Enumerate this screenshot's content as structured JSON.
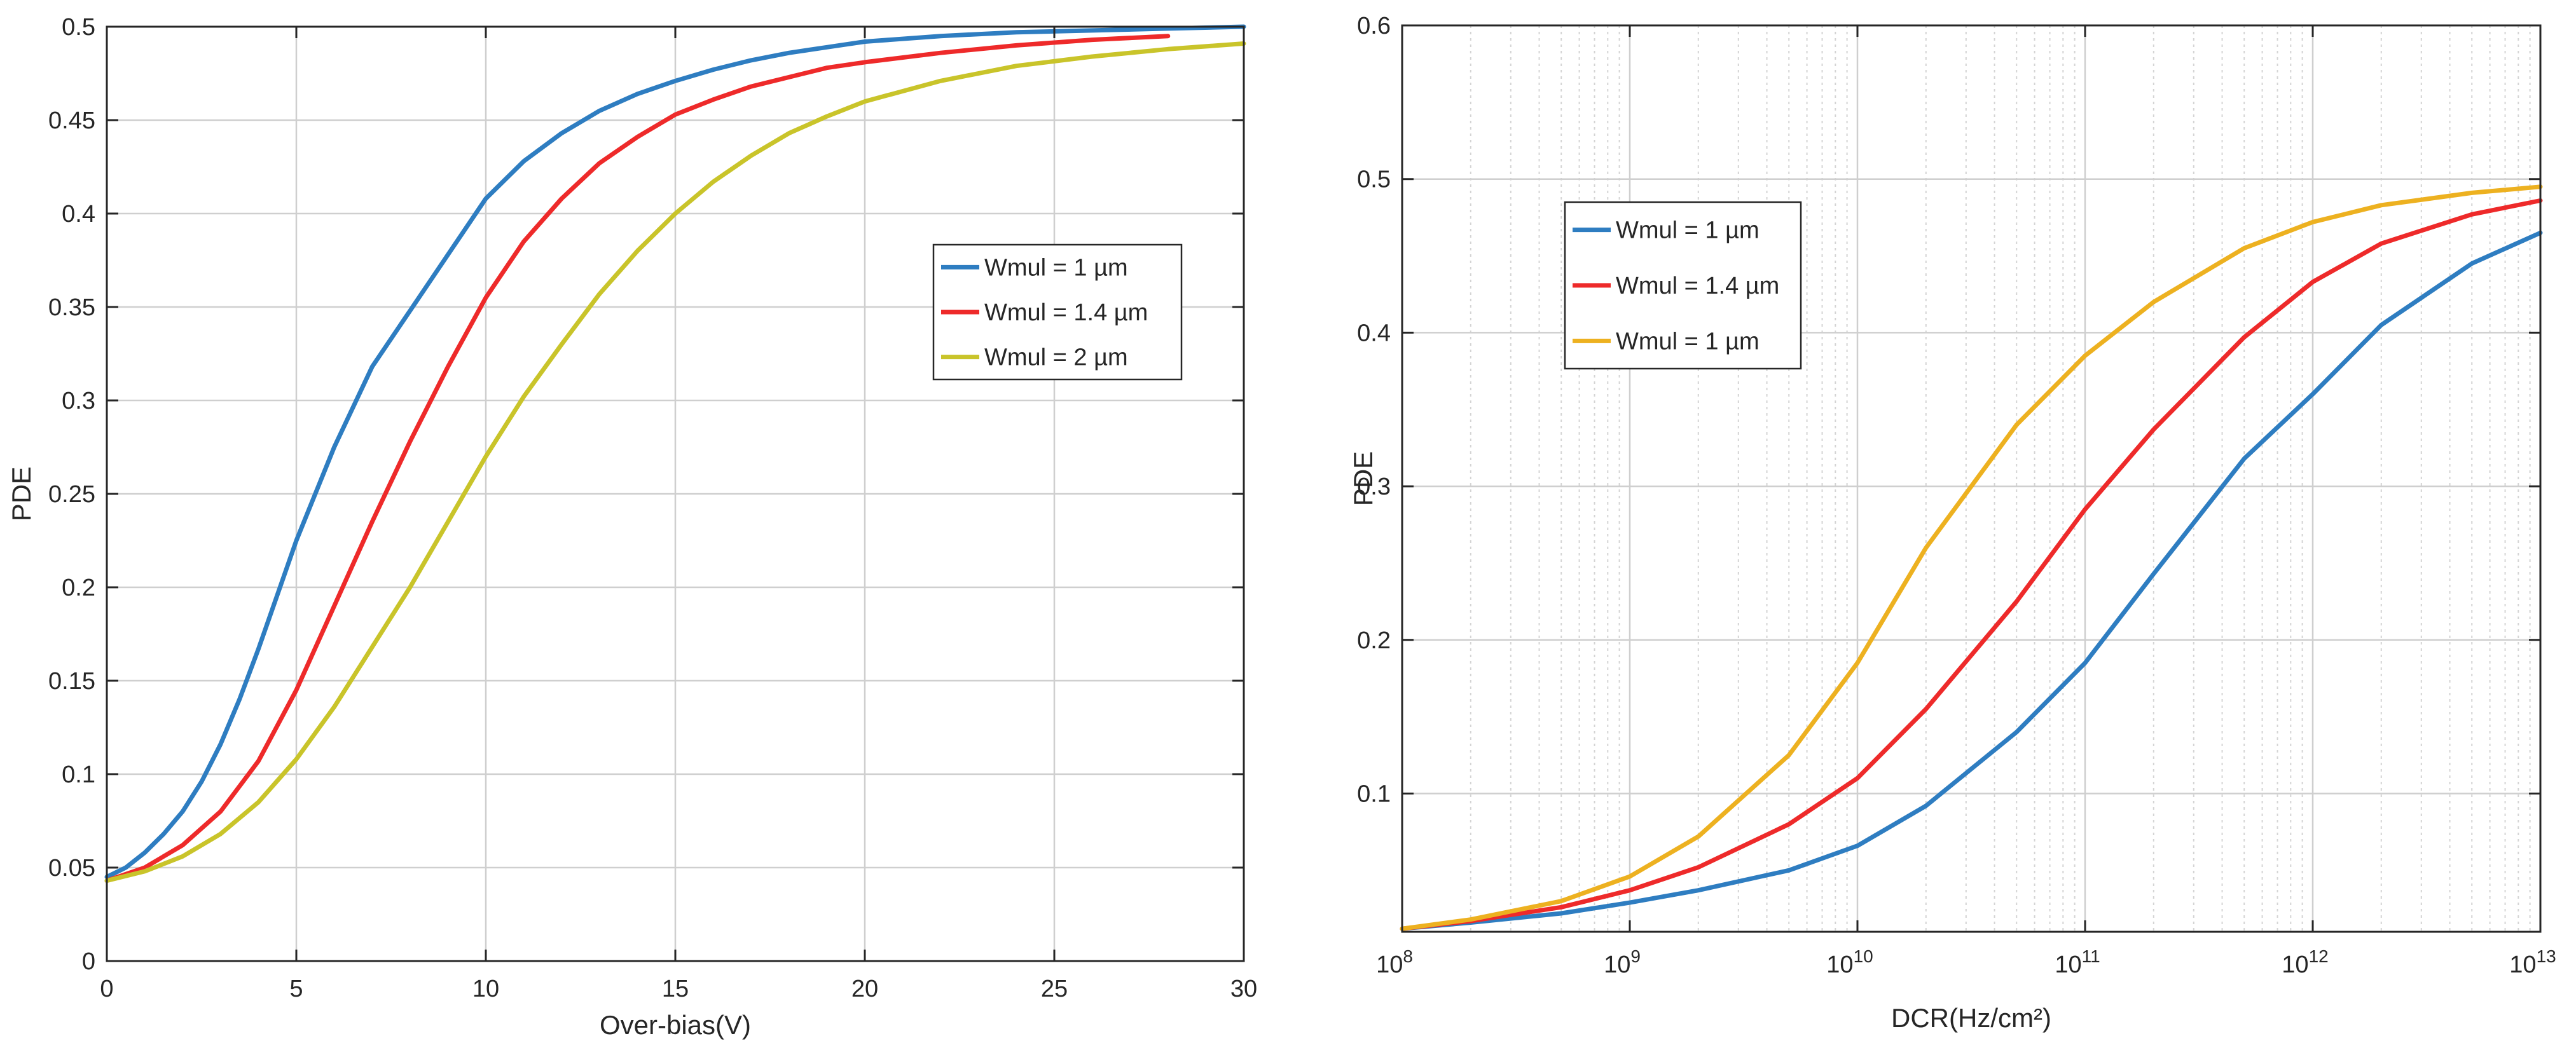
{
  "chart_data": [
    {
      "type": "line",
      "title": "",
      "xlabel": "Over-bias(V)",
      "ylabel": "PDE",
      "xlim": [
        0,
        30
      ],
      "ylim": [
        0,
        0.5
      ],
      "xticks": [
        0,
        5,
        10,
        15,
        20,
        25,
        30
      ],
      "xtick_labels": [
        "0",
        "5",
        "10",
        "15",
        "20",
        "25",
        "30"
      ],
      "yticks": [
        0,
        0.05,
        0.1,
        0.15,
        0.2,
        0.25,
        0.3,
        0.35,
        0.4,
        0.45,
        0.5
      ],
      "ytick_labels": [
        "0",
        "0.05",
        "0.1",
        "0.15",
        "0.2",
        "0.25",
        "0.3",
        "0.35",
        "0.4",
        "0.45",
        "0.5"
      ],
      "grid": true,
      "legend_position": "right-middle",
      "series": [
        {
          "name": "Wmul = 1 µm",
          "color": "#2E7DC1",
          "x": [
            0,
            0.5,
            1,
            1.5,
            2,
            2.5,
            3,
            3.5,
            4,
            4.5,
            5,
            6,
            7,
            8,
            9,
            10,
            11,
            12,
            13,
            14,
            15,
            16,
            17,
            18,
            19,
            20,
            22,
            24,
            26,
            28,
            30
          ],
          "y": [
            0.045,
            0.05,
            0.058,
            0.068,
            0.08,
            0.096,
            0.116,
            0.14,
            0.167,
            0.196,
            0.225,
            0.275,
            0.318,
            0.348,
            0.378,
            0.408,
            0.428,
            0.443,
            0.455,
            0.464,
            0.471,
            0.477,
            0.482,
            0.486,
            0.489,
            0.492,
            0.495,
            0.497,
            0.498,
            0.499,
            0.5
          ]
        },
        {
          "name": "Wmul = 1.4 µm",
          "color": "#EE2A2A",
          "x": [
            0,
            1,
            2,
            3,
            4,
            5,
            6,
            7,
            8,
            9,
            10,
            11,
            12,
            13,
            14,
            15,
            16,
            17,
            18,
            19,
            20,
            22,
            24,
            26,
            28
          ],
          "y": [
            0.043,
            0.05,
            0.062,
            0.08,
            0.107,
            0.145,
            0.19,
            0.235,
            0.278,
            0.318,
            0.355,
            0.385,
            0.408,
            0.427,
            0.441,
            0.453,
            0.461,
            0.468,
            0.473,
            0.478,
            0.481,
            0.486,
            0.49,
            0.493,
            0.495
          ]
        },
        {
          "name": "Wmul = 2 µm",
          "color": "#C9C42A",
          "x": [
            0,
            1,
            2,
            3,
            4,
            5,
            6,
            7,
            8,
            9,
            10,
            11,
            12,
            13,
            14,
            15,
            16,
            17,
            18,
            19,
            20,
            22,
            24,
            26,
            28,
            30
          ],
          "y": [
            0.043,
            0.048,
            0.056,
            0.068,
            0.085,
            0.108,
            0.136,
            0.168,
            0.2,
            0.235,
            0.27,
            0.302,
            0.33,
            0.357,
            0.38,
            0.4,
            0.417,
            0.431,
            0.443,
            0.452,
            0.46,
            0.471,
            0.479,
            0.484,
            0.488,
            0.491
          ]
        }
      ]
    },
    {
      "type": "line",
      "title": "",
      "xlabel": "DCR(Hz/cm²)",
      "ylabel": "PDE",
      "xscale": "log",
      "xlim": [
        100000000,
        10000000000000
      ],
      "ylim": [
        0.01,
        0.6
      ],
      "xticks": [
        100000000,
        1000000000,
        10000000000,
        100000000000,
        1000000000000,
        10000000000000
      ],
      "xtick_bases": [
        "10",
        "10",
        "10",
        "10",
        "10",
        "10"
      ],
      "xtick_exponents": [
        "8",
        "9",
        "10",
        "11",
        "12",
        "13"
      ],
      "yticks": [
        0.1,
        0.2,
        0.3,
        0.4,
        0.5,
        0.6
      ],
      "ytick_labels": [
        "0.1",
        "0.2",
        "0.3",
        "0.4",
        "0.5",
        "0.6"
      ],
      "grid": true,
      "minor_grid": true,
      "legend_position": "left-upper",
      "series": [
        {
          "name": "Wmul = 1 µm",
          "color": "#2E7DC1",
          "x": [
            100000000,
            200000000,
            500000000,
            1000000000,
            2000000000,
            5000000000,
            10000000000,
            20000000000,
            50000000000,
            100000000000,
            200000000000,
            500000000000,
            1000000000000,
            2000000000000,
            5000000000000,
            10000000000000
          ],
          "y": [
            0.012,
            0.016,
            0.022,
            0.029,
            0.037,
            0.05,
            0.066,
            0.092,
            0.14,
            0.185,
            0.243,
            0.318,
            0.36,
            0.405,
            0.445,
            0.465
          ]
        },
        {
          "name": "Wmul = 1.4 µm",
          "color": "#EE2A2A",
          "x": [
            100000000,
            200000000,
            500000000,
            1000000000,
            2000000000,
            5000000000,
            10000000000,
            20000000000,
            50000000000,
            100000000000,
            200000000000,
            500000000000,
            1000000000000,
            2000000000000,
            5000000000000,
            10000000000000
          ],
          "y": [
            0.012,
            0.017,
            0.026,
            0.037,
            0.052,
            0.08,
            0.11,
            0.155,
            0.225,
            0.285,
            0.337,
            0.397,
            0.433,
            0.458,
            0.477,
            0.486
          ]
        },
        {
          "name": "Wmul = 1 µm",
          "color": "#EDB120",
          "x": [
            100000000,
            200000000,
            500000000,
            1000000000,
            2000000000,
            5000000000,
            10000000000,
            20000000000,
            50000000000,
            100000000000,
            200000000000,
            500000000000,
            1000000000000,
            2000000000000,
            5000000000000,
            10000000000000
          ],
          "y": [
            0.012,
            0.018,
            0.03,
            0.046,
            0.072,
            0.125,
            0.185,
            0.26,
            0.34,
            0.385,
            0.42,
            0.455,
            0.472,
            0.483,
            0.491,
            0.495
          ]
        }
      ]
    }
  ]
}
